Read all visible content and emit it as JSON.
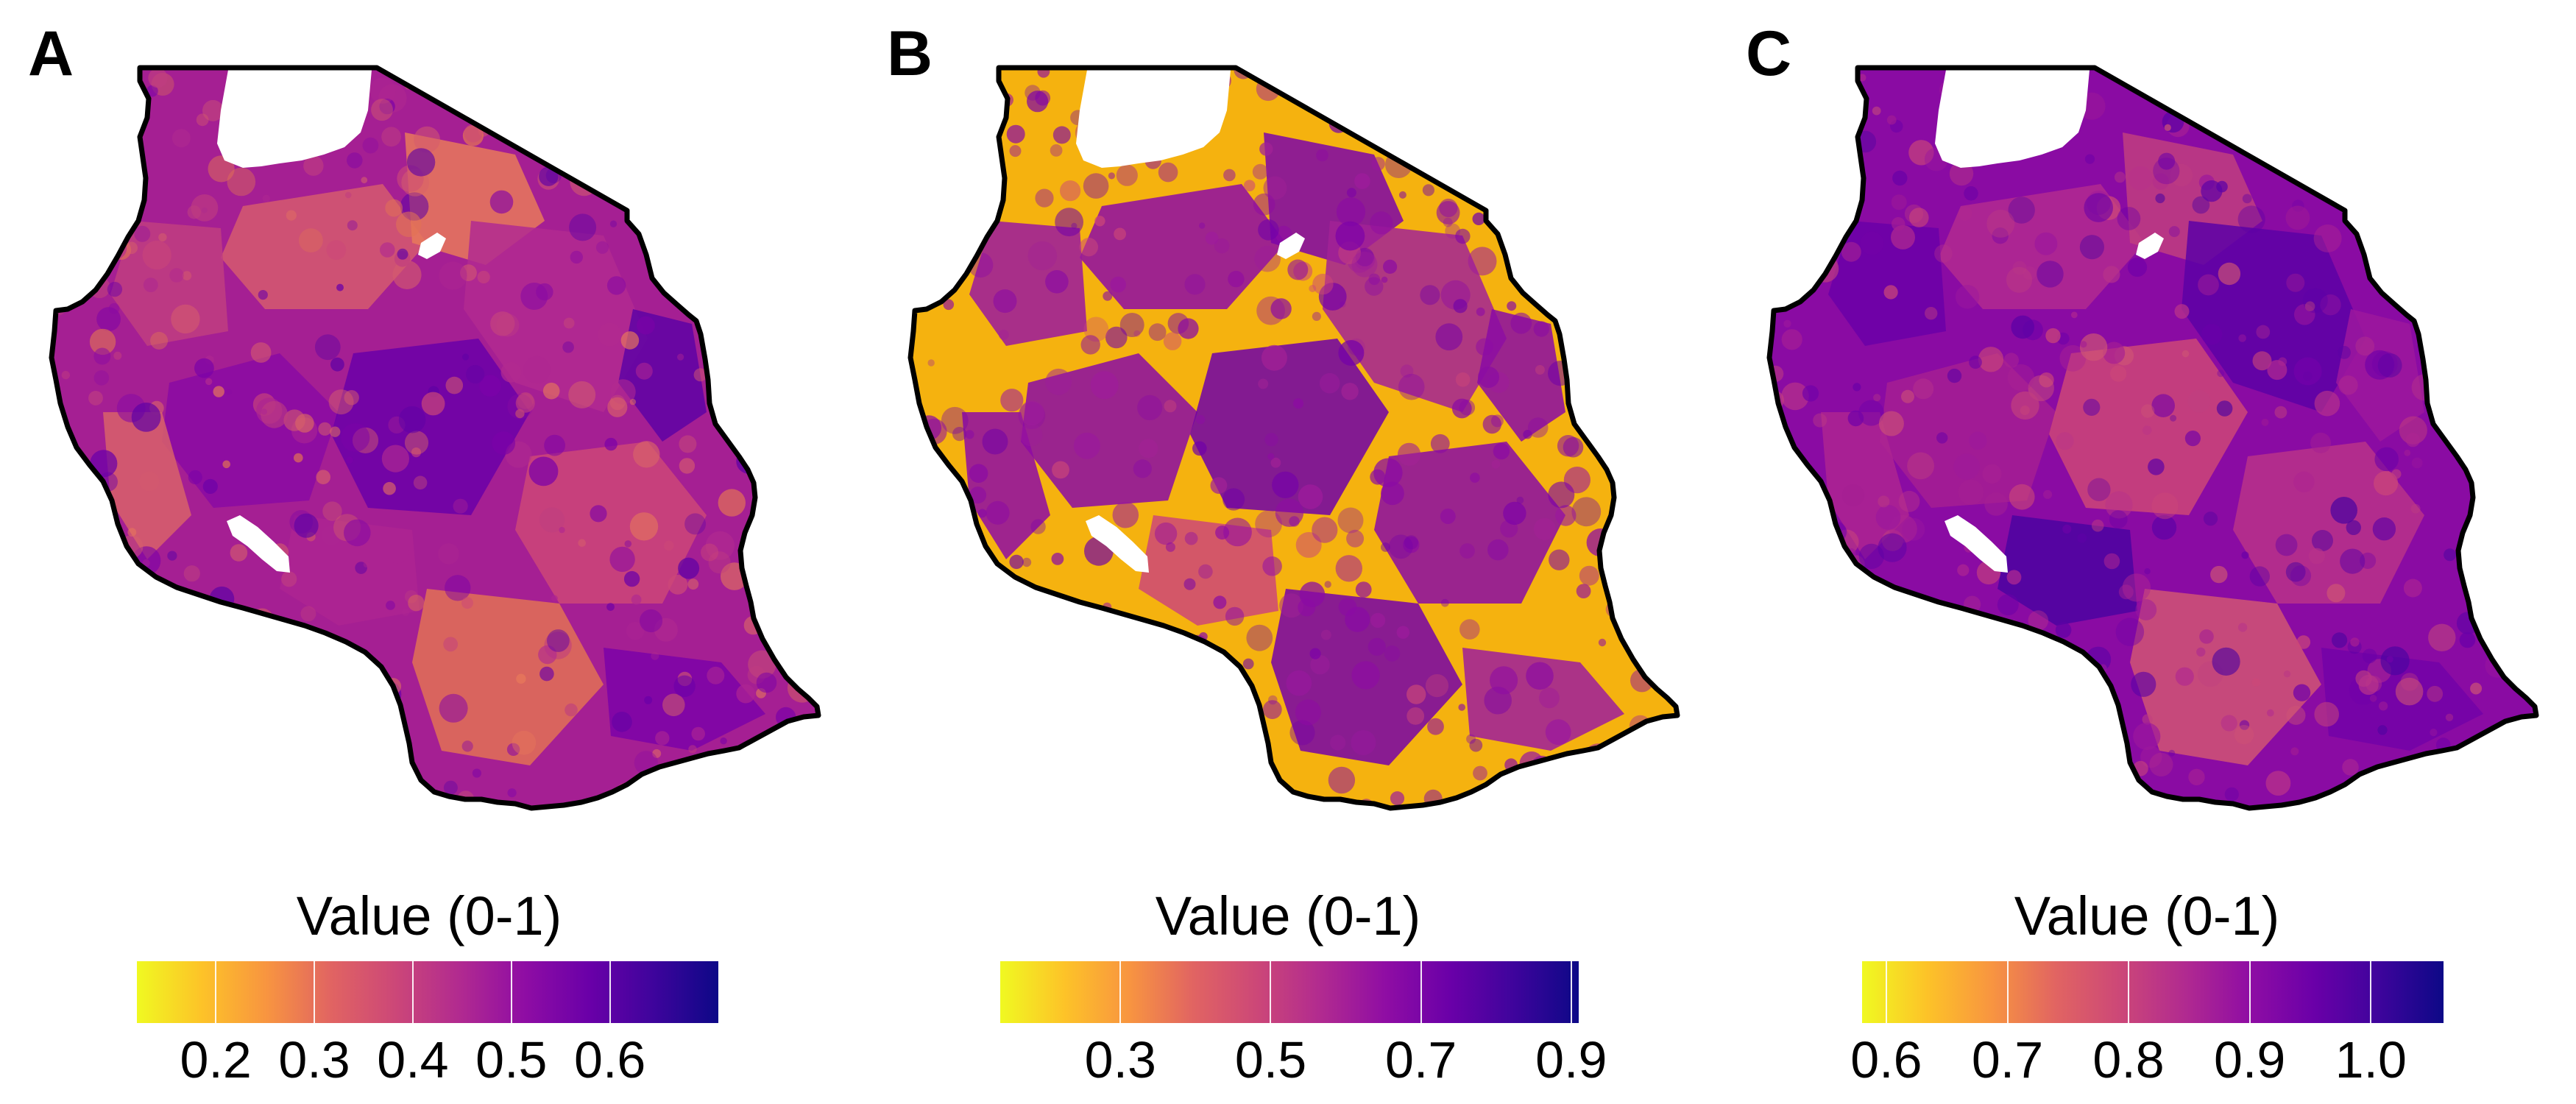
{
  "colors": {
    "outline": "#000000",
    "lake": "#ffffff",
    "scale": [
      "#f0f921",
      "#fdc328",
      "#f89540",
      "#e16462",
      "#cc4778",
      "#b12a90",
      "#8f0da4",
      "#6a00a8",
      "#3e049c",
      "#0d0887"
    ]
  },
  "panels": [
    {
      "letter": "A",
      "legend_title": "Value (0-1)",
      "scale_min": 0.12,
      "scale_max": 0.71,
      "ticks": [
        0.2,
        0.3,
        0.4,
        0.5,
        0.6
      ],
      "tick_labels": [
        "0.2",
        "0.3",
        "0.4",
        "0.5",
        "0.6"
      ],
      "base_color": "#a51f93",
      "patch_colors": [
        "#d55a6e",
        "#e8795a",
        "#c03e80",
        "#8a0ba3",
        "#6a00a8",
        "#b12a90",
        "#cc4778",
        "#e27155",
        "#7b02a8",
        "#d8616a",
        "#ad2592",
        "#5e02a5"
      ]
    },
    {
      "letter": "B",
      "legend_title": "Value (0-1)",
      "scale_min": 0.14,
      "scale_max": 0.91,
      "ticks": [
        0.3,
        0.5,
        0.7,
        0.9
      ],
      "tick_labels": [
        "0.3",
        "0.5",
        "0.7",
        "0.9"
      ],
      "base_color": "#f5b20f",
      "patch_colors": [
        "#8e0ba4",
        "#7d03a8",
        "#9a179f",
        "#8a0ba4",
        "#6f00a8",
        "#a22295",
        "#8a0aa5",
        "#7501a8",
        "#9e1c9c",
        "#8e0ba4",
        "#cc4778",
        "#8a0ba4"
      ]
    },
    {
      "letter": "C",
      "legend_title": "Value (0-1)",
      "scale_min": 0.58,
      "scale_max": 1.06,
      "ticks": [
        0.6,
        0.7,
        0.8,
        0.9,
        1.0
      ],
      "tick_labels": [
        "0.6",
        "0.7",
        "0.8",
        "0.9",
        "1.0"
      ],
      "base_color": "#8a0ba3",
      "patch_colors": [
        "#b12a90",
        "#c03e80",
        "#6a00a8",
        "#a51f93",
        "#cc4778",
        "#5c01a6",
        "#b8338a",
        "#d05574",
        "#7202a8",
        "#ad2592",
        "#4b03a1",
        "#9c189d"
      ]
    }
  ]
}
